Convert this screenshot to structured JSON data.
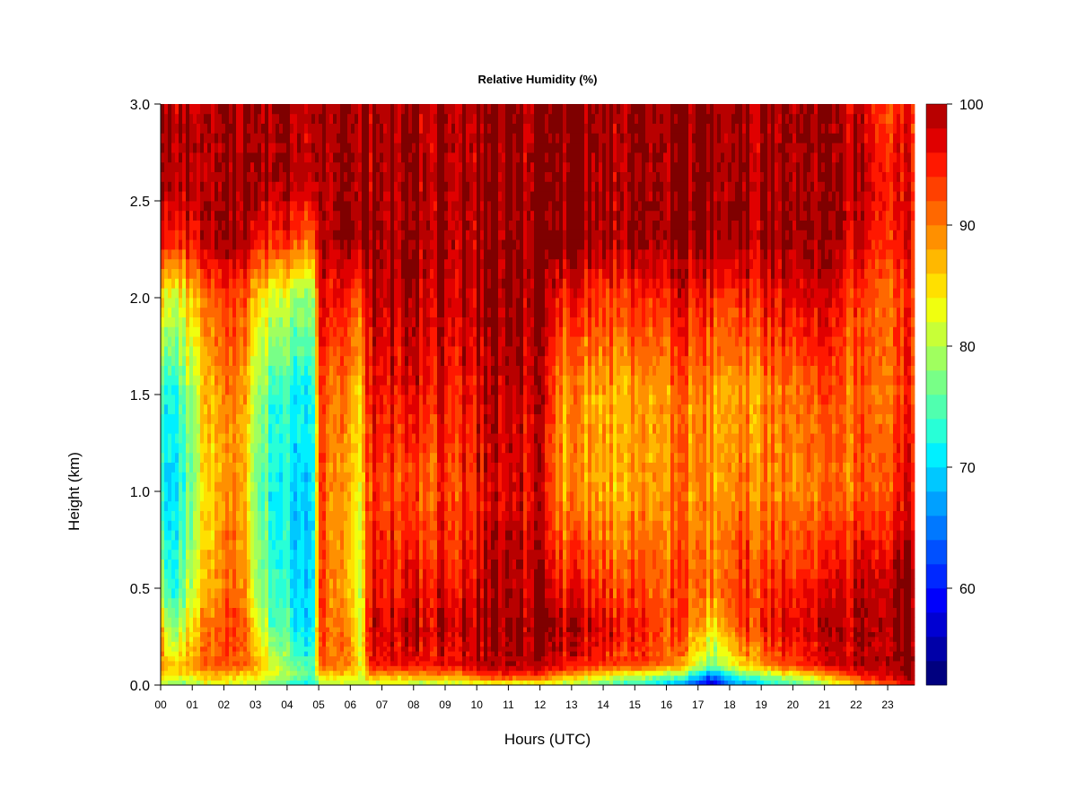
{
  "chart_data": {
    "type": "heatmap",
    "title": "Relative Humidity (%)",
    "xlabel": "Hours (UTC)",
    "ylabel": "Height (km)",
    "x_ticks": [
      "00",
      "01",
      "02",
      "03",
      "04",
      "05",
      "06",
      "07",
      "08",
      "09",
      "10",
      "11",
      "12",
      "13",
      "14",
      "15",
      "16",
      "17",
      "18",
      "19",
      "20",
      "21",
      "22",
      "23"
    ],
    "xlim": [
      0,
      23.85
    ],
    "y_ticks": [
      "0.0",
      "0.5",
      "1.0",
      "1.5",
      "2.0",
      "2.5",
      "3.0"
    ],
    "ylim": [
      0,
      3.0
    ],
    "colorbar": {
      "ticks": [
        "60",
        "70",
        "80",
        "90",
        "100"
      ],
      "range": [
        52,
        100
      ],
      "levels": 24,
      "colors": [
        "#00007f",
        "#0000a8",
        "#0000d2",
        "#0000fc",
        "#0028ff",
        "#0050ff",
        "#0078ff",
        "#00a0ff",
        "#00c8ff",
        "#00f0ff",
        "#28ffd7",
        "#50ffaf",
        "#78ff87",
        "#a0ff5f",
        "#c8ff37",
        "#f0ff0f",
        "#ffe000",
        "#ffb800",
        "#ff9000",
        "#ff6800",
        "#ff4000",
        "#ff1800",
        "#e00000",
        "#b80000",
        "#7f0000"
      ]
    },
    "profiles": [
      {
        "hour": 0.0,
        "heights": [
          0.0,
          0.05,
          0.1,
          0.3,
          0.5,
          1.0,
          1.5,
          2.0,
          2.3,
          2.6,
          3.0
        ],
        "values": [
          80,
          85,
          90,
          88,
          80,
          72,
          74,
          86,
          96,
          100,
          100
        ]
      },
      {
        "hour": 0.3,
        "heights": [
          0.0,
          0.05,
          0.1,
          0.3,
          0.5,
          1.0,
          1.5,
          2.0,
          2.3,
          2.6,
          3.0
        ],
        "values": [
          78,
          84,
          86,
          78,
          72,
          70,
          72,
          82,
          95,
          100,
          100
        ]
      },
      {
        "hour": 0.9,
        "heights": [
          0.0,
          0.05,
          0.1,
          0.3,
          0.5,
          1.0,
          1.5,
          2.0,
          2.3,
          2.6,
          3.0
        ],
        "values": [
          78,
          84,
          88,
          84,
          80,
          76,
          78,
          86,
          96,
          100,
          100
        ]
      },
      {
        "hour": 1.4,
        "heights": [
          0.0,
          0.05,
          0.1,
          0.3,
          0.5,
          1.0,
          1.5,
          2.0,
          2.3,
          2.6,
          3.0
        ],
        "values": [
          82,
          88,
          92,
          92,
          88,
          86,
          88,
          92,
          100,
          100,
          100
        ]
      },
      {
        "hour": 2.5,
        "heights": [
          0.0,
          0.05,
          0.1,
          0.3,
          0.5,
          1.0,
          1.5,
          2.0,
          2.3,
          2.6,
          3.0
        ],
        "values": [
          80,
          86,
          92,
          94,
          92,
          90,
          90,
          94,
          100,
          100,
          100
        ]
      },
      {
        "hour": 3.0,
        "heights": [
          0.0,
          0.05,
          0.1,
          0.3,
          0.5,
          1.0,
          1.5,
          2.0,
          2.3,
          2.6,
          3.0
        ],
        "values": [
          80,
          85,
          88,
          84,
          80,
          78,
          80,
          86,
          96,
          100,
          100
        ]
      },
      {
        "hour": 3.6,
        "heights": [
          0.0,
          0.05,
          0.1,
          0.3,
          0.5,
          1.0,
          1.5,
          2.0,
          2.3,
          2.6,
          3.0
        ],
        "values": [
          76,
          82,
          82,
          76,
          74,
          72,
          74,
          82,
          95,
          100,
          100
        ]
      },
      {
        "hour": 4.3,
        "heights": [
          0.0,
          0.05,
          0.1,
          0.3,
          0.5,
          1.0,
          1.5,
          2.0,
          2.3,
          2.6,
          3.0
        ],
        "values": [
          72,
          78,
          76,
          72,
          71,
          70,
          72,
          80,
          94,
          100,
          100
        ]
      },
      {
        "hour": 4.85,
        "heights": [
          0.0,
          0.05,
          0.1,
          0.3,
          0.5,
          1.0,
          1.5,
          2.0,
          2.3,
          2.6,
          3.0
        ],
        "values": [
          72,
          76,
          74,
          72,
          72,
          72,
          74,
          80,
          92,
          100,
          100
        ]
      },
      {
        "hour": 5.0,
        "heights": [
          0.0,
          0.05,
          0.1,
          0.3,
          0.5,
          1.0,
          1.5,
          2.0,
          2.3,
          2.6,
          3.0
        ],
        "values": [
          78,
          86,
          92,
          94,
          94,
          94,
          94,
          98,
          100,
          100,
          100
        ]
      },
      {
        "hour": 6.0,
        "heights": [
          0.0,
          0.05,
          0.1,
          0.3,
          0.5,
          1.0,
          1.5,
          2.0,
          2.3,
          2.6,
          3.0
        ],
        "values": [
          80,
          85,
          90,
          88,
          86,
          86,
          88,
          94,
          100,
          100,
          100
        ]
      },
      {
        "hour": 6.4,
        "heights": [
          0.0,
          0.05,
          0.1,
          0.3,
          0.5,
          1.0,
          1.5,
          2.0,
          2.3,
          2.6,
          3.0
        ],
        "values": [
          80,
          82,
          82,
          82,
          82,
          84,
          86,
          92,
          100,
          100,
          100
        ]
      },
      {
        "hour": 6.6,
        "heights": [
          0.0,
          0.05,
          0.1,
          0.3,
          0.5,
          1.0,
          1.5,
          2.0,
          2.3,
          2.6,
          3.0
        ],
        "values": [
          80,
          88,
          96,
          98,
          96,
          94,
          96,
          99,
          100,
          100,
          100
        ]
      },
      {
        "hour": 8.0,
        "heights": [
          0.0,
          0.05,
          0.1,
          0.3,
          0.5,
          1.0,
          1.5,
          2.0,
          2.3,
          2.6,
          3.0
        ],
        "values": [
          80,
          88,
          96,
          98,
          96,
          92,
          96,
          99,
          100,
          100,
          100
        ]
      },
      {
        "hour": 9.5,
        "heights": [
          0.0,
          0.05,
          0.1,
          0.3,
          0.5,
          1.0,
          1.5,
          2.0,
          2.3,
          2.6,
          3.0
        ],
        "values": [
          80,
          90,
          97,
          99,
          97,
          94,
          96,
          99,
          100,
          100,
          100
        ]
      },
      {
        "hour": 10.5,
        "heights": [
          0.0,
          0.05,
          0.1,
          0.3,
          0.5,
          1.0,
          1.5,
          2.0,
          2.3,
          2.6,
          3.0
        ],
        "values": [
          82,
          94,
          99,
          100,
          99,
          97,
          98,
          100,
          100,
          100,
          100
        ]
      },
      {
        "hour": 12.0,
        "heights": [
          0.0,
          0.05,
          0.1,
          0.3,
          0.5,
          1.0,
          1.5,
          2.0,
          2.3,
          2.6,
          3.0
        ],
        "values": [
          82,
          94,
          99,
          100,
          99,
          97,
          98,
          100,
          100,
          100,
          100
        ]
      },
      {
        "hour": 12.6,
        "heights": [
          0.0,
          0.05,
          0.1,
          0.3,
          0.5,
          1.0,
          1.5,
          2.0,
          2.3,
          2.6,
          3.0
        ],
        "values": [
          80,
          88,
          96,
          98,
          94,
          88,
          88,
          94,
          100,
          100,
          100
        ]
      },
      {
        "hour": 14.0,
        "heights": [
          0.0,
          0.05,
          0.1,
          0.3,
          0.5,
          1.0,
          1.5,
          2.0,
          2.3,
          2.6,
          3.0
        ],
        "values": [
          76,
          84,
          94,
          98,
          94,
          88,
          88,
          94,
          100,
          100,
          100
        ]
      },
      {
        "hour": 15.5,
        "heights": [
          0.0,
          0.05,
          0.1,
          0.3,
          0.5,
          1.0,
          1.5,
          2.0,
          2.3,
          2.6,
          3.0
        ],
        "values": [
          70,
          80,
          92,
          94,
          92,
          88,
          88,
          94,
          100,
          100,
          100
        ]
      },
      {
        "hour": 16.5,
        "heights": [
          0.0,
          0.05,
          0.1,
          0.3,
          0.5,
          1.0,
          1.5,
          2.0,
          2.3,
          2.6,
          3.0
        ],
        "values": [
          66,
          76,
          88,
          92,
          92,
          90,
          90,
          96,
          100,
          100,
          100
        ]
      },
      {
        "hour": 17.4,
        "heights": [
          0.0,
          0.05,
          0.1,
          0.3,
          0.5,
          1.0,
          1.5,
          2.0,
          2.3,
          2.6,
          3.0
        ],
        "values": [
          56,
          64,
          76,
          84,
          90,
          88,
          88,
          94,
          100,
          100,
          100
        ]
      },
      {
        "hour": 18.2,
        "heights": [
          0.0,
          0.05,
          0.1,
          0.3,
          0.5,
          1.0,
          1.5,
          2.0,
          2.3,
          2.6,
          3.0
        ],
        "values": [
          66,
          74,
          84,
          92,
          94,
          90,
          88,
          94,
          100,
          100,
          100
        ]
      },
      {
        "hour": 19.5,
        "heights": [
          0.0,
          0.05,
          0.1,
          0.3,
          0.5,
          1.0,
          1.5,
          2.0,
          2.3,
          2.6,
          3.0
        ],
        "values": [
          72,
          80,
          92,
          96,
          94,
          90,
          90,
          96,
          100,
          100,
          100
        ]
      },
      {
        "hour": 20.8,
        "heights": [
          0.0,
          0.05,
          0.1,
          0.3,
          0.5,
          1.0,
          1.5,
          2.0,
          2.3,
          2.6,
          3.0
        ],
        "values": [
          78,
          86,
          96,
          98,
          96,
          90,
          92,
          98,
          100,
          100,
          100
        ]
      },
      {
        "hour": 22.0,
        "heights": [
          0.0,
          0.05,
          0.1,
          0.3,
          0.5,
          1.0,
          1.5,
          2.0,
          2.3,
          2.6,
          3.0
        ],
        "values": [
          86,
          94,
          99,
          100,
          99,
          92,
          92,
          94,
          98,
          100,
          98
        ]
      },
      {
        "hour": 23.3,
        "heights": [
          0.0,
          0.05,
          0.1,
          0.3,
          0.5,
          1.0,
          1.5,
          2.0,
          2.3,
          2.6,
          3.0
        ],
        "values": [
          94,
          99,
          100,
          100,
          100,
          94,
          92,
          92,
          95,
          96,
          94
        ]
      },
      {
        "hour": 23.85,
        "heights": [
          0.0,
          0.05,
          0.1,
          0.3,
          0.5,
          1.0,
          1.5,
          2.0,
          2.3,
          2.6,
          3.0
        ],
        "values": [
          98,
          100,
          100,
          100,
          100,
          96,
          94,
          94,
          95,
          96,
          94
        ]
      }
    ]
  }
}
